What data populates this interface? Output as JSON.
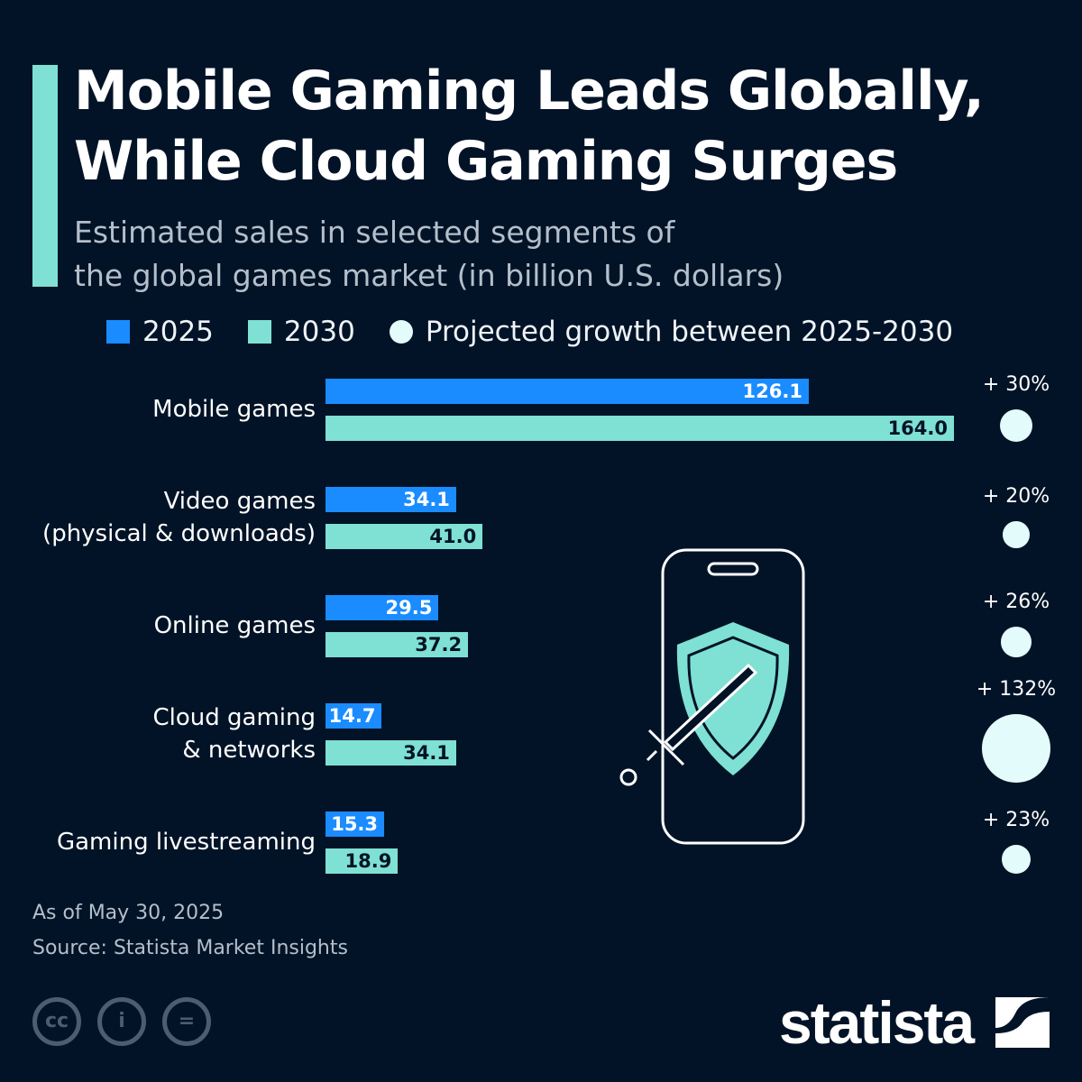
{
  "title_lines": [
    "Mobile Gaming Leads Globally,",
    "While Cloud Gaming Surges"
  ],
  "subtitle_lines": [
    "Estimated sales in selected segments of",
    "the global games market (in billion U.S. dollars)"
  ],
  "legend": {
    "s2025": "2025",
    "s2030": "2030",
    "growth": "Projected growth between 2025-2030"
  },
  "colors": {
    "2025": "#1a8cff",
    "2030": "#7fe0d4",
    "growth": "#e3fbfb",
    "background": "#021327"
  },
  "chart_data": {
    "type": "bar",
    "orientation": "horizontal",
    "categories": [
      [
        "Mobile games"
      ],
      [
        "Video games",
        "(physical & downloads)"
      ],
      [
        "Online games"
      ],
      [
        "Cloud gaming",
        "& networks"
      ],
      [
        "Gaming livestreaming"
      ]
    ],
    "series": [
      {
        "name": "2025",
        "values": [
          126.1,
          34.1,
          29.5,
          14.7,
          15.3
        ]
      },
      {
        "name": "2030",
        "values": [
          164.0,
          41.0,
          37.2,
          34.1,
          18.9
        ]
      }
    ],
    "growth": {
      "name": "Projected growth between 2025-2030",
      "labels": [
        "+ 30%",
        "+ 20%",
        "+ 26%",
        "+ 132%",
        "+ 23%"
      ],
      "values": [
        30,
        20,
        26,
        132,
        23
      ]
    },
    "grid": false,
    "legend_position": "top"
  },
  "footer": {
    "date": "As of May 30, 2025",
    "source": "Source: Statista Market Insights"
  },
  "license_icons": [
    "cc-icon",
    "attribution-icon",
    "no-derivatives-icon"
  ],
  "logo": "statista"
}
